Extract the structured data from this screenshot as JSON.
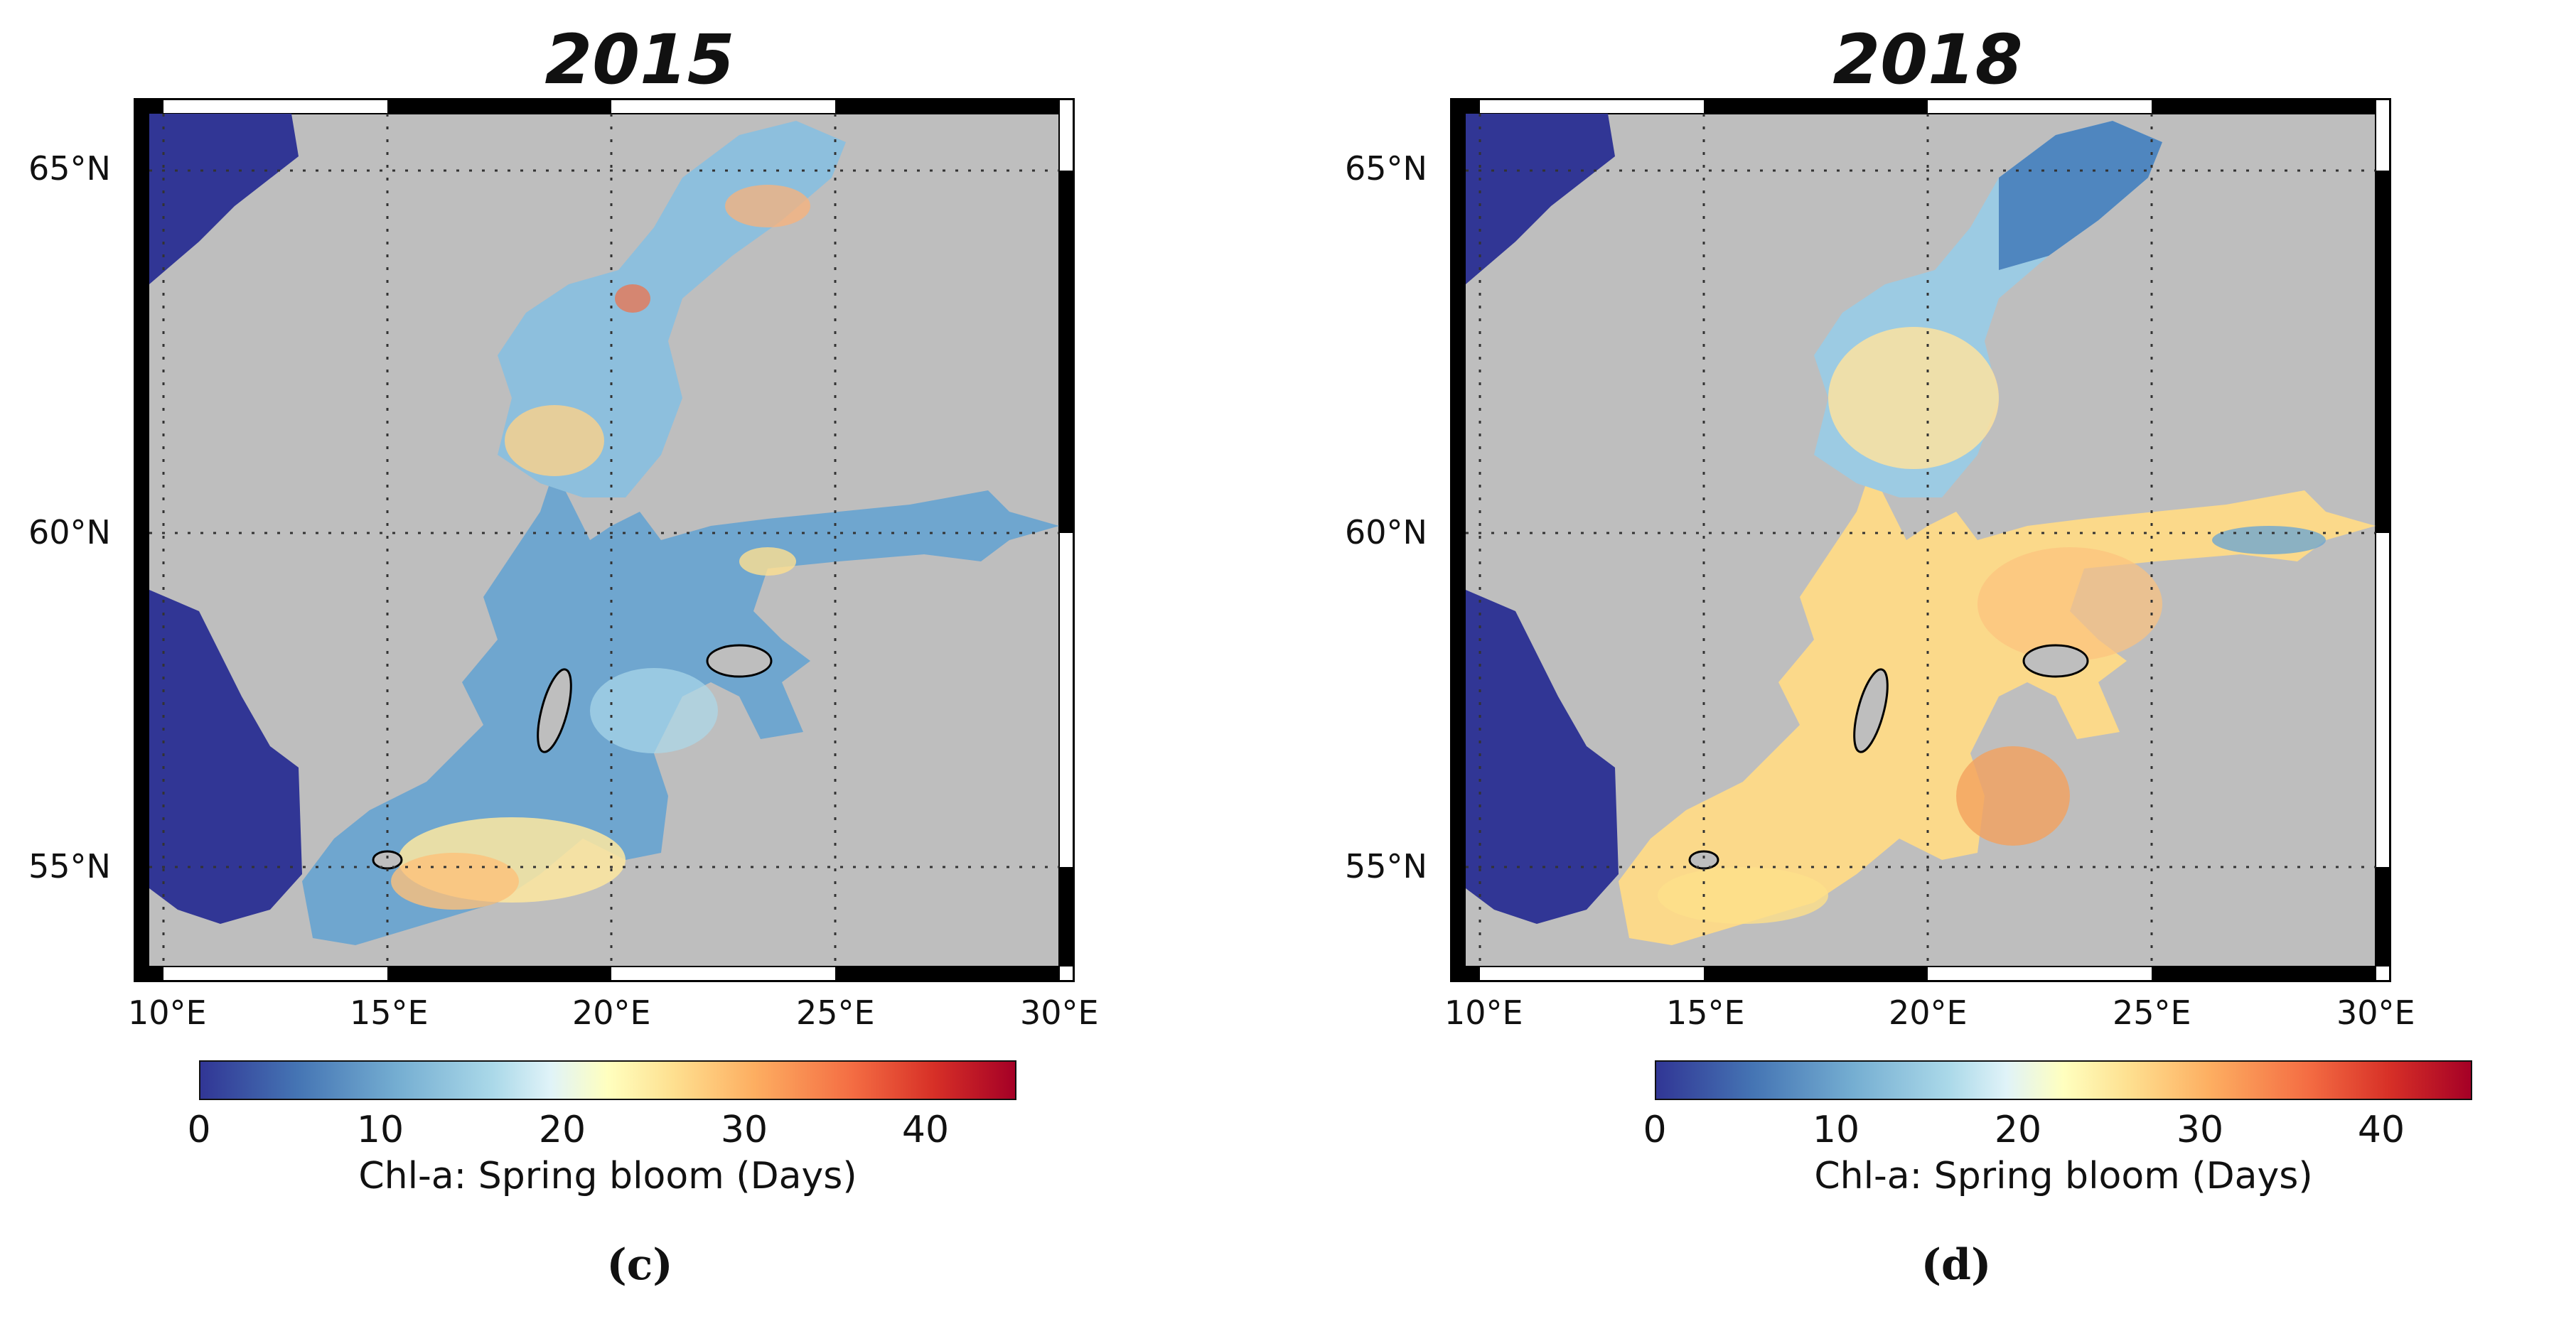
{
  "panels": [
    {
      "title": "2015",
      "panel_label": "(c)",
      "lat_labels": [
        "65°N",
        "60°N",
        "55°N"
      ],
      "lon_labels": [
        "10°E",
        "15°E",
        "20°E",
        "25°E",
        "30°E"
      ],
      "colorbar": {
        "ticks": [
          "0",
          "10",
          "20",
          "30",
          "40"
        ],
        "label": "Chl-a: Spring bloom (Days)",
        "range": [
          0,
          45
        ]
      }
    },
    {
      "title": "2018",
      "panel_label": "(d)",
      "lat_labels": [
        "65°N",
        "60°N",
        "55°N"
      ],
      "lon_labels": [
        "10°E",
        "15°E",
        "20°E",
        "25°E",
        "30°E"
      ],
      "colorbar": {
        "ticks": [
          "0",
          "10",
          "20",
          "30",
          "40"
        ],
        "label": "Chl-a: Spring bloom (Days)",
        "range": [
          0,
          45
        ]
      }
    }
  ],
  "colors": {
    "land": "#bebebe",
    "masked_sea": "#313695",
    "low": "#4575b4",
    "mid": "#ffffbf",
    "high": "#a50026"
  }
}
